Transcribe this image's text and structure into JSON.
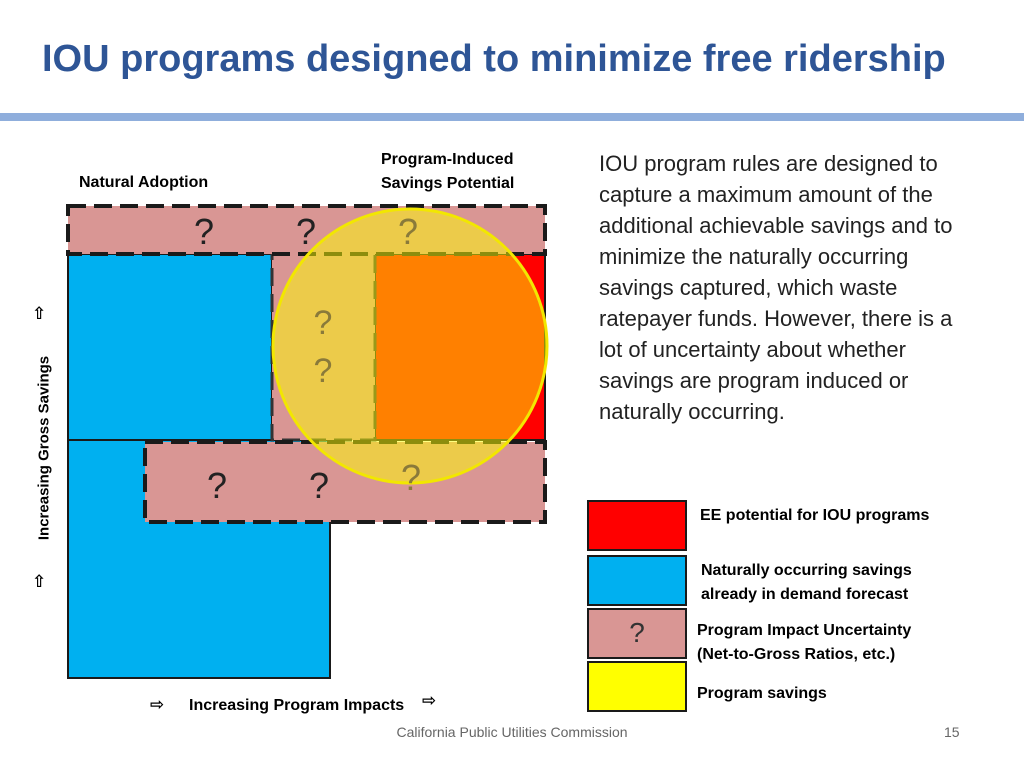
{
  "slide": {
    "title": "IOU programs designed to minimize free ridership",
    "footer": "California Public Utilities Commission",
    "page_number": "15"
  },
  "diagram": {
    "label_natural_adoption": "Natural Adoption",
    "label_program_induced": [
      "Program-Induced",
      "Savings Potential"
    ],
    "y_axis_label": "Increasing Gross Savings",
    "x_axis_label": "Increasing Program Impacts",
    "uncertainty_mark": "?",
    "colors": {
      "ee_potential": "#ff0000",
      "naturally_occurring": "#00b0f0",
      "uncertainty": "#d99694",
      "program_savings": "#ffff00",
      "overlap_orange": "#ff7f00"
    }
  },
  "body_text": "IOU program rules are designed to capture a maximum amount of the additional achievable savings and to minimize the naturally occurring savings captured, which waste ratepayer funds. However, there is a lot of uncertainty about whether savings are program induced or naturally occurring.",
  "legend": [
    {
      "label": "EE potential for IOU programs",
      "color": "#ff0000",
      "mark": ""
    },
    {
      "label": "Naturally occurring savings already in demand forecast",
      "color": "#00b0f0",
      "mark": ""
    },
    {
      "label": "Program Impact Uncertainty (Net-to-Gross Ratios, etc.)",
      "color": "#d99694",
      "mark": "?"
    },
    {
      "label": "Program savings",
      "color": "#ffff00",
      "mark": ""
    }
  ],
  "legend_lines": {
    "naturally_occurring": [
      "Naturally occurring savings",
      "already in demand forecast"
    ],
    "uncertainty": [
      "Program Impact Uncertainty",
      "(Net-to-Gross Ratios, etc.)"
    ]
  }
}
